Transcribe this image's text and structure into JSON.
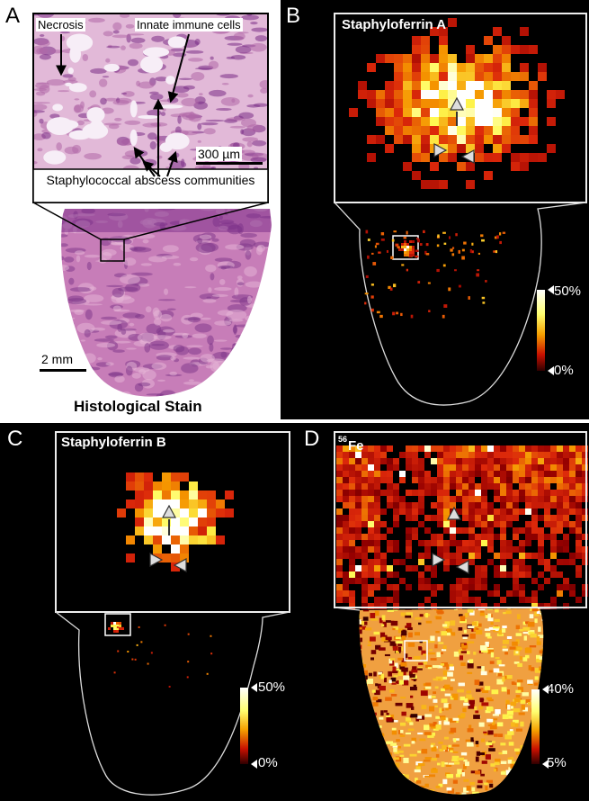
{
  "panel_a": {
    "letter": "A",
    "necrosis": "Necrosis",
    "innate": "Innate immune cells",
    "scale_inset": "300 µm",
    "communities": "Staphylococcal abscess communities",
    "scale_tissue": "2 mm",
    "caption": "Histological Stain"
  },
  "panel_b": {
    "letter": "B",
    "title": "Staphyloferrin A",
    "colorbar_max": "50%",
    "colorbar_min": "0%"
  },
  "panel_c": {
    "letter": "C",
    "title": "Staphyloferrin B",
    "colorbar_max": "50%",
    "colorbar_min": "0%"
  },
  "panel_d": {
    "letter": "D",
    "title_superscript": "56",
    "title": "Fe",
    "colorbar_max": "40%",
    "colorbar_min": "5%"
  }
}
